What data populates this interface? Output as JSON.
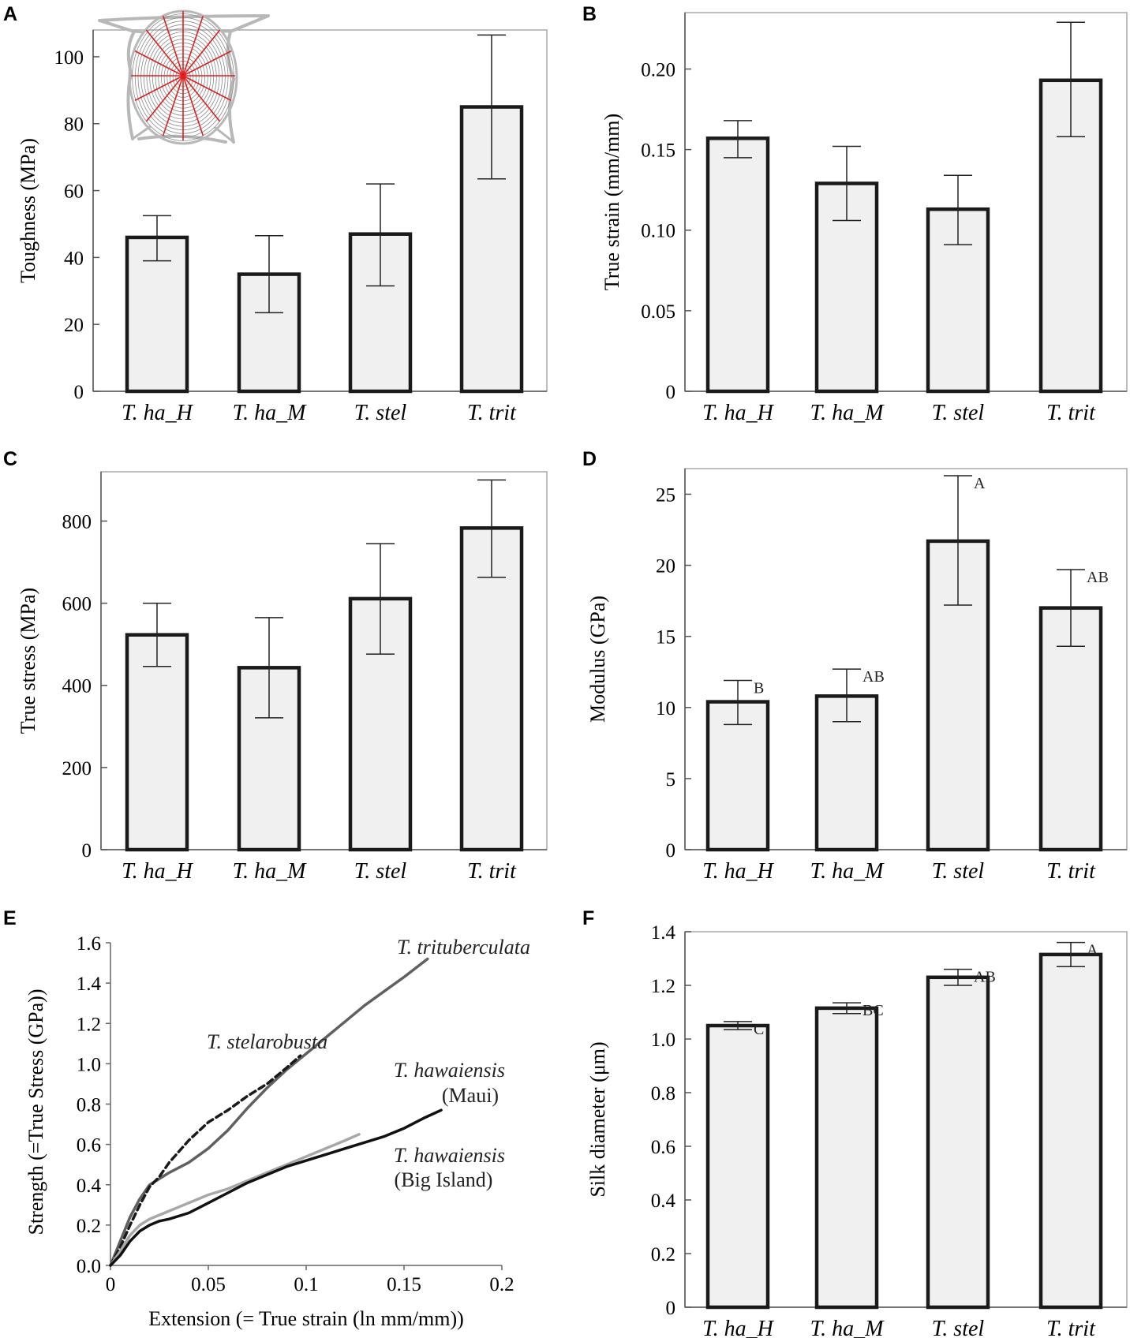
{
  "colors": {
    "bar_fill": "#f0f0f0",
    "bar_stroke": "#1a1a1a",
    "frame": "#a8a8a8",
    "web_threads": "#b8b8b8",
    "web_radii": "#e02020",
    "curve_trit": "#606060",
    "curve_stel": "#1a1a1a",
    "curve_maui": "#a8a8a8",
    "curve_big": "#111111"
  },
  "icons": {
    "panel_a_inset": "spider-web-icon"
  },
  "chart_data": [
    {
      "panel": "A",
      "type": "bar",
      "title": "",
      "ylabel": "Toughness (MPa)",
      "xlabel": "",
      "categories": [
        "T. ha_H",
        "T. ha_M",
        "T. stel",
        "T. trit"
      ],
      "values": [
        46,
        35,
        47,
        85
      ],
      "error_low": [
        39,
        23.5,
        31.5,
        63.5
      ],
      "error_high": [
        52.5,
        46.5,
        62,
        106.5
      ],
      "sig_letters": [
        "",
        "",
        "",
        ""
      ],
      "ylim": [
        0,
        108
      ],
      "yticks": [
        0,
        20,
        40,
        60,
        80,
        100
      ],
      "ytick_labels": [
        "0",
        "20",
        "40",
        "60",
        "80",
        "100"
      ],
      "grid": false
    },
    {
      "panel": "B",
      "type": "bar",
      "title": "",
      "ylabel": "True strain (mm/mm)",
      "xlabel": "",
      "categories": [
        "T. ha_H",
        "T. ha_M",
        "T. stel",
        "T. trit"
      ],
      "values": [
        0.157,
        0.129,
        0.113,
        0.193
      ],
      "error_low": [
        0.145,
        0.106,
        0.091,
        0.158
      ],
      "error_high": [
        0.168,
        0.152,
        0.134,
        0.229
      ],
      "sig_letters": [
        "",
        "",
        "",
        ""
      ],
      "ylim": [
        0,
        0.235
      ],
      "yticks": [
        0,
        0.05,
        0.1,
        0.15,
        0.2
      ],
      "ytick_labels": [
        "0",
        "0.05",
        "0.10",
        "0.15",
        "0.20"
      ],
      "grid": false
    },
    {
      "panel": "C",
      "type": "bar",
      "title": "",
      "ylabel": "True stress (MPa)",
      "xlabel": "",
      "categories": [
        "T. ha_H",
        "T. ha_M",
        "T. stel",
        "T. trit"
      ],
      "values": [
        523,
        443,
        611,
        783
      ],
      "error_low": [
        446,
        321,
        476,
        663
      ],
      "error_high": [
        600,
        565,
        745,
        900
      ],
      "sig_letters": [
        "",
        "",
        "",
        ""
      ],
      "ylim": [
        0,
        920
      ],
      "yticks": [
        0,
        200,
        400,
        600,
        800
      ],
      "ytick_labels": [
        "0",
        "200",
        "400",
        "600",
        "800"
      ],
      "grid": false
    },
    {
      "panel": "D",
      "type": "bar",
      "title": "",
      "ylabel": "Modulus (GPa)",
      "xlabel": "",
      "categories": [
        "T. ha_H",
        "T. ha_M",
        "T. stel",
        "T. trit"
      ],
      "values": [
        10.4,
        10.8,
        21.7,
        17
      ],
      "error_low": [
        8.8,
        9,
        17.2,
        14.3
      ],
      "error_high": [
        11.9,
        12.7,
        26.3,
        19.7
      ],
      "sig_letters": [
        "B",
        "AB",
        "A",
        "AB"
      ],
      "ylim": [
        0,
        26.8
      ],
      "yticks": [
        0,
        5,
        10,
        15,
        20,
        25
      ],
      "ytick_labels": [
        "0",
        "5",
        "10",
        "15",
        "20",
        "25"
      ],
      "grid": false
    },
    {
      "panel": "E",
      "type": "line",
      "title": "",
      "xlabel": "Extension (= True strain (ln mm/mm))",
      "ylabel": "Strength (=True Stress (GPa))",
      "xlim": [
        0,
        0.2
      ],
      "ylim": [
        0,
        1.6
      ],
      "xticks": [
        0,
        0.05,
        0.1,
        0.15,
        0.2
      ],
      "xtick_labels": [
        "0",
        "0.05",
        "0.1",
        "0.15",
        "0.2"
      ],
      "yticks": [
        0,
        0.2,
        0.4,
        0.6,
        0.8,
        1.0,
        1.2,
        1.4,
        1.6
      ],
      "ytick_labels": [
        "0.0",
        "0.2",
        "0.4",
        "0.6",
        "0.8",
        "1.0",
        "1.2",
        "1.4",
        "1.6"
      ],
      "grid": false,
      "series": [
        {
          "name": "T. trituberculata",
          "style": "solid",
          "x": [
            0,
            0.005,
            0.01,
            0.015,
            0.02,
            0.025,
            0.03,
            0.04,
            0.05,
            0.06,
            0.07,
            0.08,
            0.09,
            0.1,
            0.11,
            0.12,
            0.13,
            0.14,
            0.15,
            0.162
          ],
          "y": [
            0,
            0.12,
            0.24,
            0.33,
            0.4,
            0.43,
            0.46,
            0.51,
            0.58,
            0.67,
            0.78,
            0.88,
            0.97,
            1.05,
            1.13,
            1.21,
            1.29,
            1.36,
            1.43,
            1.52
          ]
        },
        {
          "name": "T. stelarobusta",
          "style": "dashed",
          "x": [
            0,
            0.005,
            0.01,
            0.015,
            0.02,
            0.025,
            0.03,
            0.04,
            0.05,
            0.06,
            0.07,
            0.08,
            0.09,
            0.097
          ],
          "y": [
            0,
            0.09,
            0.2,
            0.3,
            0.39,
            0.44,
            0.51,
            0.62,
            0.71,
            0.77,
            0.84,
            0.9,
            0.98,
            1.04
          ]
        },
        {
          "name": "T. hawaiensis (Maui)",
          "style": "solid",
          "x": [
            0,
            0.005,
            0.01,
            0.015,
            0.02,
            0.025,
            0.03,
            0.04,
            0.05,
            0.06,
            0.07,
            0.08,
            0.09,
            0.1,
            0.11,
            0.12,
            0.127
          ],
          "y": [
            0,
            0.07,
            0.15,
            0.2,
            0.23,
            0.25,
            0.27,
            0.31,
            0.35,
            0.38,
            0.42,
            0.46,
            0.5,
            0.54,
            0.58,
            0.62,
            0.65
          ]
        },
        {
          "name": "T. hawaiensis (Big Island)",
          "style": "solid",
          "x": [
            0,
            0.005,
            0.01,
            0.015,
            0.02,
            0.025,
            0.03,
            0.04,
            0.05,
            0.06,
            0.07,
            0.08,
            0.09,
            0.1,
            0.11,
            0.12,
            0.13,
            0.14,
            0.15,
            0.16,
            0.169
          ],
          "y": [
            0,
            0.05,
            0.12,
            0.17,
            0.2,
            0.22,
            0.23,
            0.26,
            0.31,
            0.36,
            0.41,
            0.45,
            0.49,
            0.52,
            0.55,
            0.58,
            0.61,
            0.64,
            0.68,
            0.73,
            0.77
          ]
        }
      ],
      "annotations": [
        "T. trituberculata",
        "T. stelarobusta",
        "T. hawaiensis",
        "(Maui)",
        "T. hawaiensis",
        "(Big Island)"
      ]
    },
    {
      "panel": "F",
      "type": "bar",
      "title": "",
      "ylabel": "Silk diameter (μm)",
      "xlabel": "",
      "categories": [
        "T. ha_H",
        "T. ha_M",
        "T. stel",
        "T. trit"
      ],
      "values": [
        1.05,
        1.115,
        1.23,
        1.315
      ],
      "error_low": [
        1.035,
        1.095,
        1.2,
        1.27
      ],
      "error_high": [
        1.065,
        1.135,
        1.26,
        1.36
      ],
      "sig_letters": [
        "C",
        "BC",
        "AB",
        "A"
      ],
      "ylim": [
        0,
        1.4
      ],
      "yticks": [
        0,
        0.2,
        0.4,
        0.6,
        0.8,
        1.0,
        1.2,
        1.4
      ],
      "ytick_labels": [
        "0",
        "0.2",
        "0.4",
        "0.6",
        "0.8",
        "1.0",
        "1.2",
        "1.4"
      ],
      "grid": false
    }
  ]
}
